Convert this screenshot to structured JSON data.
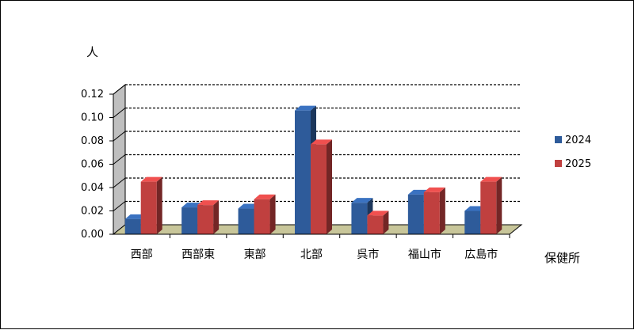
{
  "chart_data": {
    "type": "bar",
    "title": "",
    "ylabel": "人",
    "xlabel": "保健所",
    "categories": [
      "西部",
      "西部東",
      "東部",
      "北部",
      "呉市",
      "福山市",
      "広島市"
    ],
    "series": [
      {
        "name": "2024",
        "values": [
          0.013,
          0.023,
          0.022,
          0.106,
          0.027,
          0.034,
          0.02
        ]
      },
      {
        "name": "2025",
        "values": [
          0.045,
          0.025,
          0.03,
          0.077,
          0.016,
          0.036,
          0.045
        ]
      }
    ],
    "ylim": [
      0,
      0.12
    ],
    "yticks": [
      "0.00",
      "0.02",
      "0.04",
      "0.06",
      "0.08",
      "0.10",
      "0.12"
    ],
    "grid": true,
    "legend_position": "right",
    "colors": {
      "2024": "#2E5B9A",
      "2025": "#C0403F",
      "floor": "#C8C69A",
      "wall": "#BFBFBF",
      "grid": "#000000"
    }
  }
}
